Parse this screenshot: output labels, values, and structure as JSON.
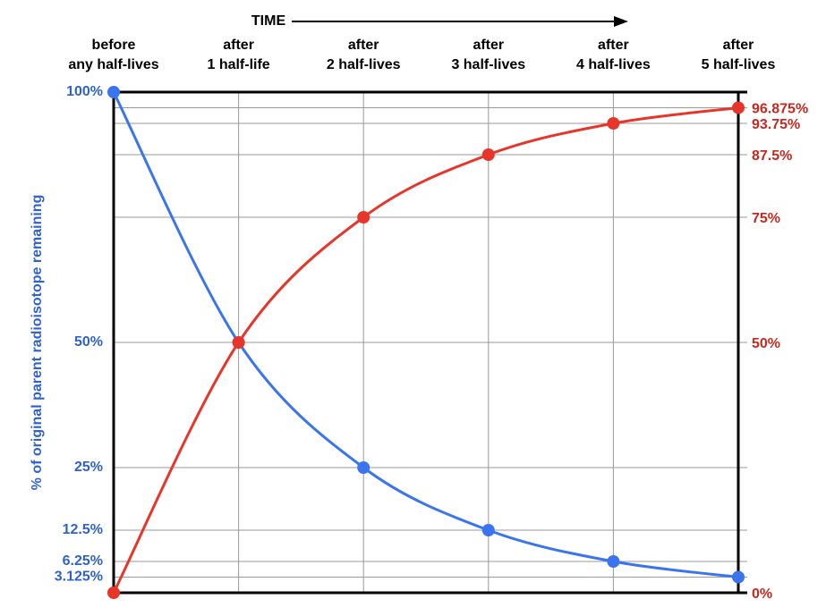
{
  "chart_data": {
    "type": "line",
    "x_label": "TIME",
    "y_label": "% of original parent radioisotope remaining",
    "categories": [
      [
        "before",
        "any half-lives"
      ],
      [
        "after",
        "1 half-life"
      ],
      [
        "after",
        "2 half-lives"
      ],
      [
        "after",
        "3 half-lives"
      ],
      [
        "after",
        "4 half-lives"
      ],
      [
        "after",
        "5 half-lives"
      ]
    ],
    "series": [
      {
        "color": "#3a74ee",
        "values": [
          100,
          50,
          25,
          12.5,
          6.25,
          3.125
        ]
      },
      {
        "color": "#e8352a",
        "axis": "y2",
        "values": [
          0,
          50,
          75,
          87.5,
          93.75,
          96.875
        ]
      }
    ],
    "ylim": [
      0,
      100
    ],
    "yticks": [
      {
        "value": 3.125,
        "label": "3.125%"
      },
      {
        "value": 6.25,
        "label": "6.25%"
      },
      {
        "value": 12.5,
        "label": "12.5%"
      },
      {
        "value": 25,
        "label": "25%"
      },
      {
        "value": 50,
        "label": "50%"
      },
      {
        "value": 100,
        "label": "100%"
      }
    ],
    "y2lim": [
      0,
      100
    ],
    "y2ticks": [
      {
        "value": 0,
        "label": "0%"
      },
      {
        "value": 50,
        "label": "50%"
      },
      {
        "value": 75,
        "label": "75%"
      },
      {
        "value": 87.5,
        "label": "87.5%"
      },
      {
        "value": 93.75,
        "label": "93.75%"
      },
      {
        "value": 96.875,
        "label": "96.875%"
      }
    ],
    "ytick_color": "#2f62cf",
    "y2tick_color": "#c8281e",
    "grid": true
  }
}
